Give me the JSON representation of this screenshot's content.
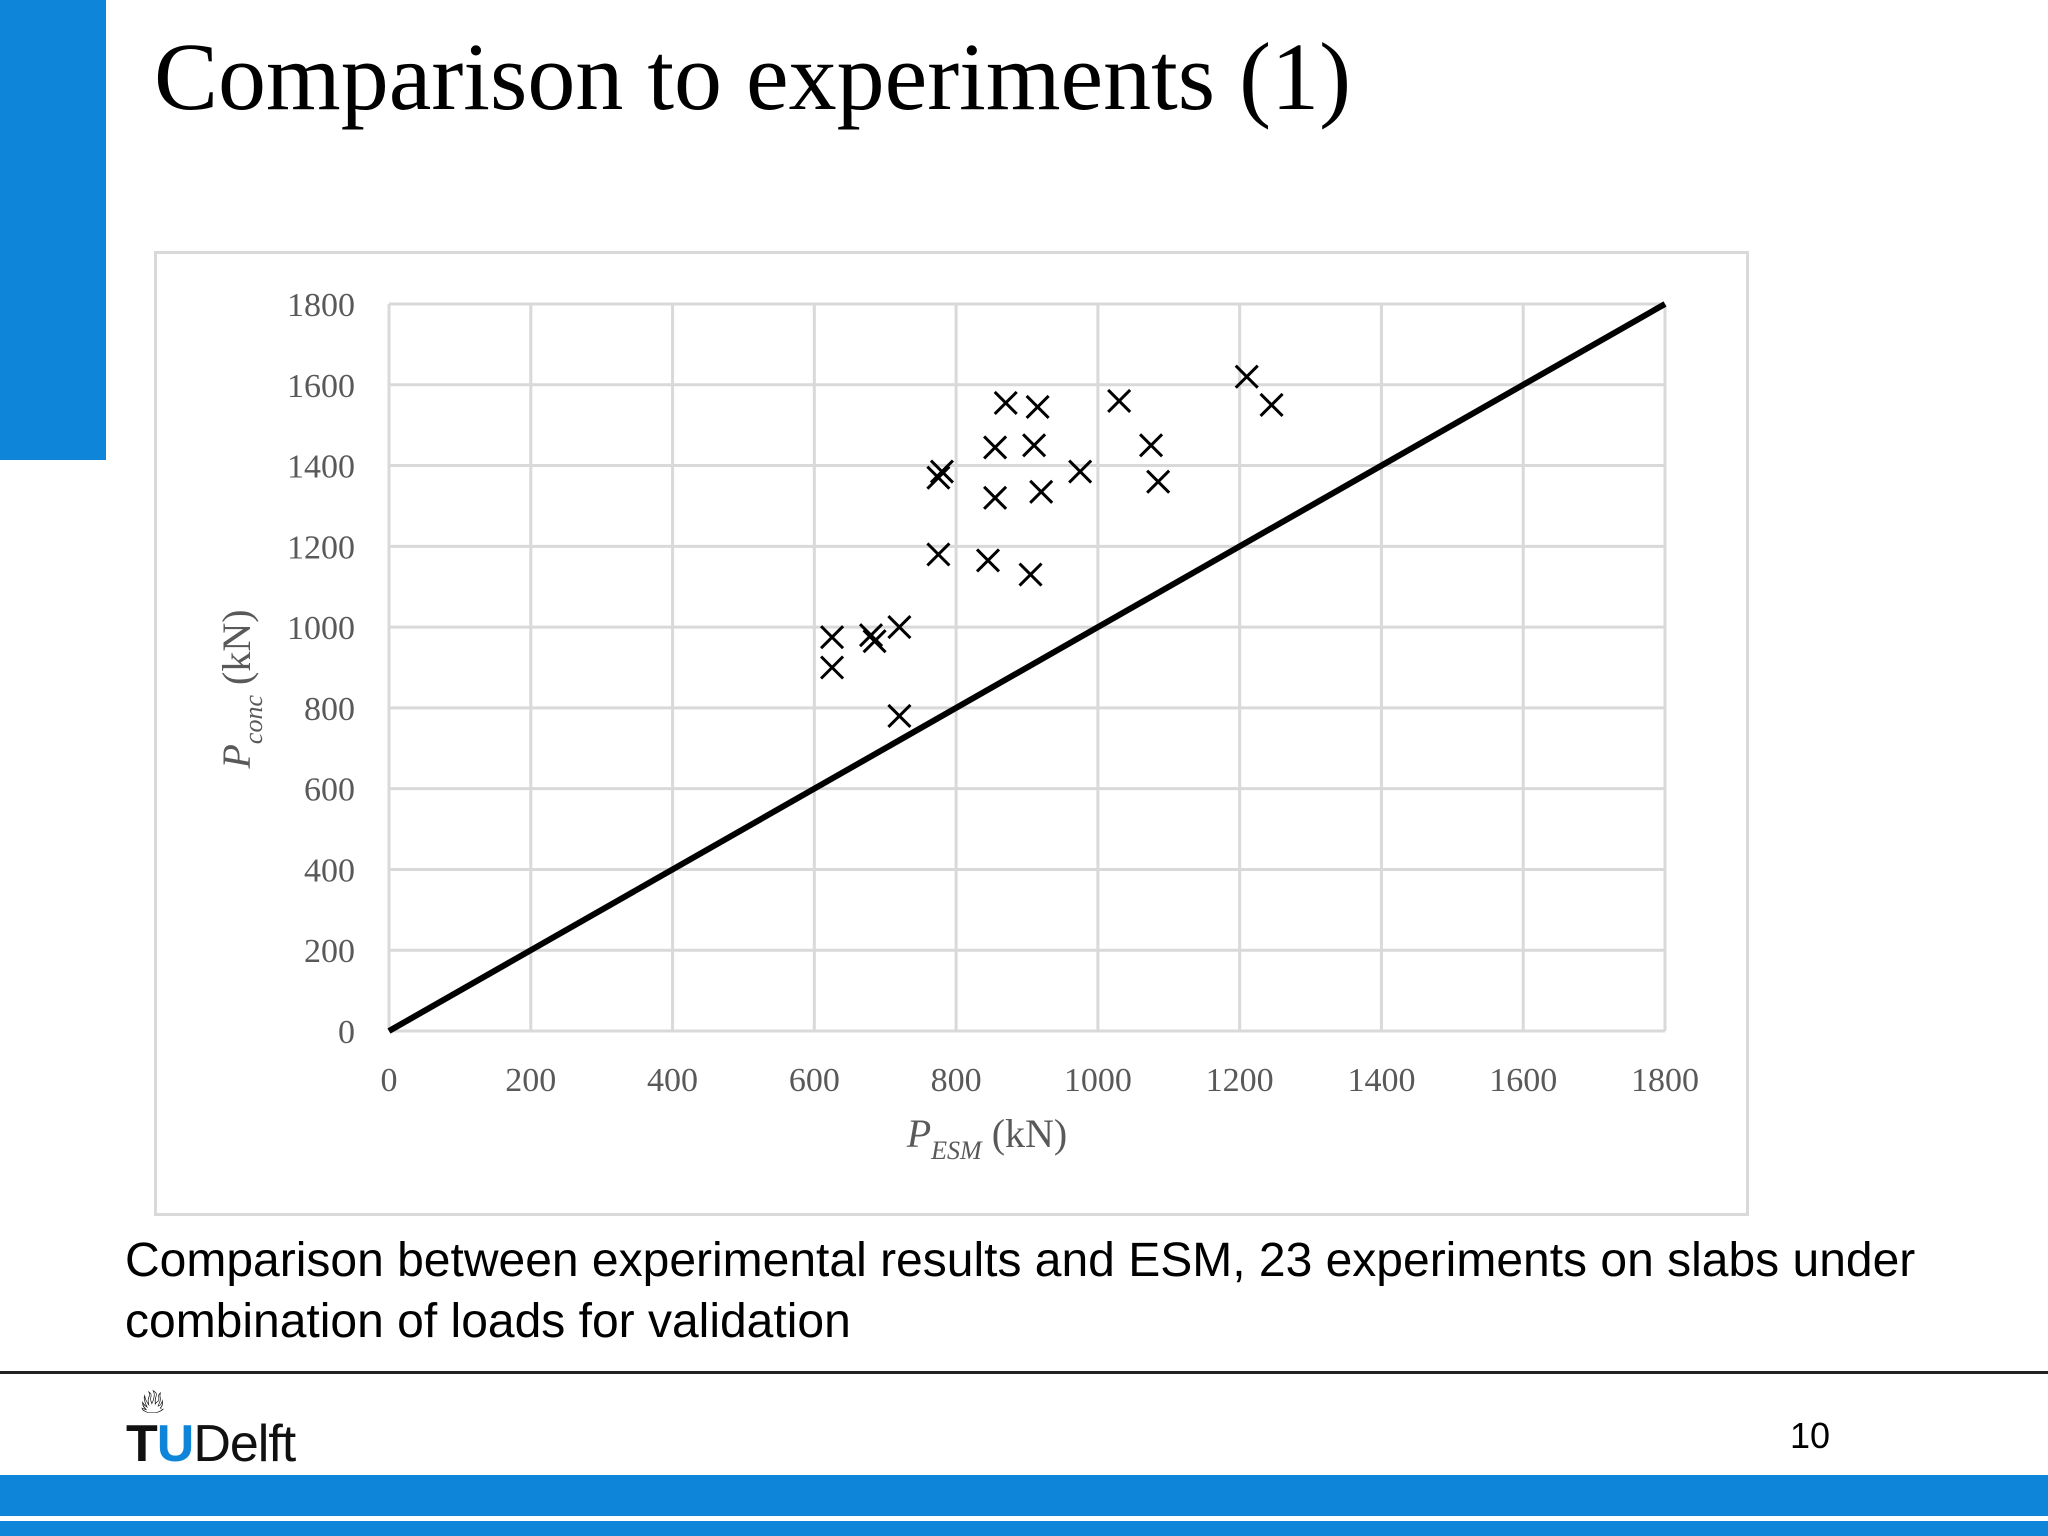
{
  "slide": {
    "title": "Comparison to experiments (1)",
    "caption": "Comparison between experimental results and ESM, 23 experiments on slabs under combination of loads for validation",
    "page_number": "10",
    "accent_color": "#0e85d8"
  },
  "footer": {
    "logo_t": "T",
    "logo_u": "U",
    "logo_rest": "Delft",
    "logo_flame_icon": "flame-icon"
  },
  "chart_data": {
    "type": "scatter",
    "xlabel": {
      "main": "P",
      "sub": "ESM",
      "unit": "(kN)"
    },
    "ylabel": {
      "main": "P",
      "sub": "conc",
      "unit": "(kN)"
    },
    "xlim": [
      0,
      1800
    ],
    "ylim": [
      0,
      1800
    ],
    "xticks": [
      "0",
      "200",
      "400",
      "600",
      "800",
      "1000",
      "1200",
      "1400",
      "1600",
      "1800"
    ],
    "yticks": [
      "0",
      "200",
      "400",
      "600",
      "800",
      "1000",
      "1200",
      "1400",
      "1600",
      "1800"
    ],
    "grid": true,
    "marker": "x",
    "reference_line": {
      "x": [
        0,
        1800
      ],
      "y": [
        0,
        1800
      ]
    },
    "points": [
      {
        "x": 625,
        "y": 975
      },
      {
        "x": 625,
        "y": 900
      },
      {
        "x": 680,
        "y": 980
      },
      {
        "x": 685,
        "y": 965
      },
      {
        "x": 720,
        "y": 1000
      },
      {
        "x": 720,
        "y": 780
      },
      {
        "x": 775,
        "y": 1370
      },
      {
        "x": 780,
        "y": 1385
      },
      {
        "x": 775,
        "y": 1180
      },
      {
        "x": 845,
        "y": 1165
      },
      {
        "x": 855,
        "y": 1445
      },
      {
        "x": 855,
        "y": 1320
      },
      {
        "x": 870,
        "y": 1555
      },
      {
        "x": 905,
        "y": 1130
      },
      {
        "x": 910,
        "y": 1450
      },
      {
        "x": 915,
        "y": 1545
      },
      {
        "x": 920,
        "y": 1335
      },
      {
        "x": 975,
        "y": 1385
      },
      {
        "x": 1030,
        "y": 1560
      },
      {
        "x": 1075,
        "y": 1450
      },
      {
        "x": 1085,
        "y": 1360
      },
      {
        "x": 1210,
        "y": 1620
      },
      {
        "x": 1245,
        "y": 1550
      }
    ]
  }
}
